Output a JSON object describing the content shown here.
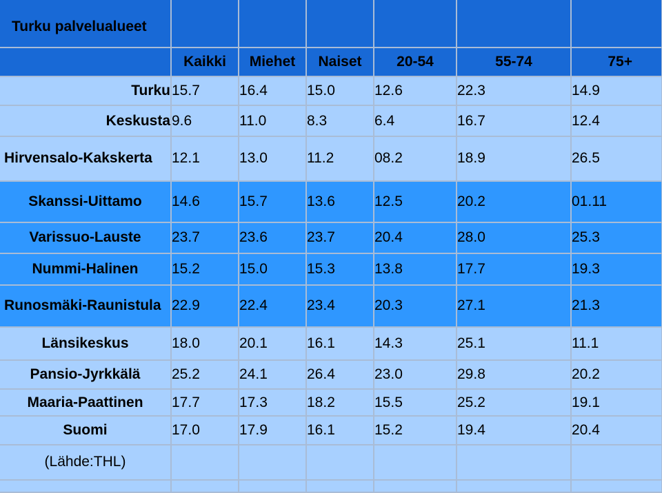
{
  "chart_data": {
    "type": "table",
    "title": "Turku palvelualueet",
    "columns": [
      "Kaikki",
      "Miehet",
      "Naiset",
      "20-54",
      "55-74",
      "75+"
    ],
    "rows": [
      {
        "label": "Turku",
        "values": [
          "15.7",
          "16.4",
          "15.0",
          "12.6",
          "22.3",
          "14.9"
        ]
      },
      {
        "label": "Keskusta",
        "values": [
          "9.6",
          "11.0",
          "8.3",
          "6.4",
          "16.7",
          "12.4"
        ]
      },
      {
        "label": "Hirvensalo-Kakskerta",
        "values": [
          "12.1",
          "13.0",
          "11.2",
          "08.2",
          "18.9",
          "26.5"
        ]
      },
      {
        "label": "Skanssi-Uittamo",
        "values": [
          "14.6",
          "15.7",
          "13.6",
          "12.5",
          "20.2",
          "01.11"
        ]
      },
      {
        "label": "Varissuo-Lauste",
        "values": [
          "23.7",
          "23.6",
          "23.7",
          "20.4",
          "28.0",
          "25.3"
        ]
      },
      {
        "label": "Nummi-Halinen",
        "values": [
          "15.2",
          "15.0",
          "15.3",
          "13.8",
          "17.7",
          "19.3"
        ]
      },
      {
        "label": "Runosmäki-Raunistula",
        "values": [
          "22.9",
          "22.4",
          "23.4",
          "20.3",
          "27.1",
          "21.3"
        ]
      },
      {
        "label": "Länsikeskus",
        "values": [
          "18.0",
          "20.1",
          "16.1",
          "14.3",
          "25.1",
          "11.1"
        ]
      },
      {
        "label": "Pansio-Jyrkkälä",
        "values": [
          "25.2",
          "24.1",
          "26.4",
          "23.0",
          "29.8",
          "20.2"
        ]
      },
      {
        "label": "Maaria-Paattinen",
        "values": [
          "17.7",
          "17.3",
          "18.2",
          "15.5",
          "25.2",
          "19.1"
        ]
      },
      {
        "label": "Suomi",
        "values": [
          "17.0",
          "17.9",
          "16.1",
          "15.2",
          "19.4",
          "20.4"
        ]
      }
    ],
    "source": "(Lähde:THL)"
  },
  "colors": {
    "title_background": "#1869d6",
    "light_row": "#a8d0ff",
    "mid_row": "#2f97ff",
    "gridline": "#a9bcd6"
  }
}
